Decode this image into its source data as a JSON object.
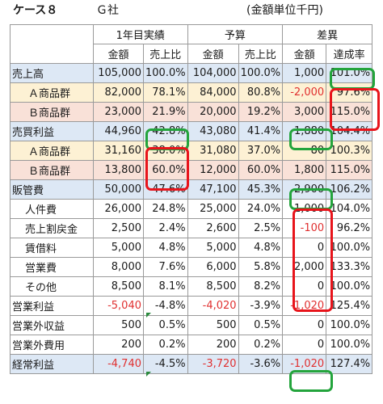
{
  "title": "ケース８",
  "company": "Ｇ社",
  "unit": "(金額単位千円)",
  "groups": {
    "year1": "1年目実績",
    "budget": "予算",
    "diff": "差異"
  },
  "cols": {
    "amount": "金額",
    "ratio": "売上比",
    "amount2": "金額",
    "ratio2": "売上比",
    "amount3": "金額",
    "achieve": "達成率"
  },
  "rows": [
    {
      "label": "売上高",
      "a1": "105,000",
      "r1": "100.0%",
      "a2": "104,000",
      "r2": "100.0%",
      "d": "1,000",
      "p": "101.0%"
    },
    {
      "label": "Ａ商品群",
      "a1": "82,000",
      "r1": "78.1%",
      "a2": "84,000",
      "r2": "80.8%",
      "d": "-2,000",
      "p": "97.6%"
    },
    {
      "label": "Ｂ商品群",
      "a1": "23,000",
      "r1": "21.9%",
      "a2": "20,000",
      "r2": "19.2%",
      "d": "3,000",
      "p": "115.0%"
    },
    {
      "label": "売買利益",
      "a1": "44,960",
      "r1": "42.8%",
      "a2": "43,080",
      "r2": "41.4%",
      "d": "1,880",
      "p": "104.4%"
    },
    {
      "label": "Ａ商品群",
      "a1": "31,160",
      "r1": "38.0%",
      "a2": "31,080",
      "r2": "37.0%",
      "d": "80",
      "p": "100.3%"
    },
    {
      "label": "Ｂ商品群",
      "a1": "13,800",
      "r1": "60.0%",
      "a2": "12,000",
      "r2": "60.0%",
      "d": "1,800",
      "p": "115.0%"
    },
    {
      "label": "販管費",
      "a1": "50,000",
      "r1": "47.6%",
      "a2": "47,100",
      "r2": "45.3%",
      "d": "2,900",
      "p": "106.2%"
    },
    {
      "label": "人件費",
      "a1": "26,000",
      "r1": "24.8%",
      "a2": "25,000",
      "r2": "24.0%",
      "d": "1,000",
      "p": "104.0%"
    },
    {
      "label": "売上割戻金",
      "a1": "2,500",
      "r1": "2.4%",
      "a2": "2,600",
      "r2": "2.5%",
      "d": "-100",
      "p": "96.2%"
    },
    {
      "label": "賃借料",
      "a1": "5,000",
      "r1": "4.8%",
      "a2": "5,000",
      "r2": "4.8%",
      "d": "0",
      "p": "100.0%"
    },
    {
      "label": "営業費",
      "a1": "8,000",
      "r1": "7.6%",
      "a2": "6,000",
      "r2": "5.8%",
      "d": "2,000",
      "p": "133.3%"
    },
    {
      "label": "その他",
      "a1": "8,500",
      "r1": "8.1%",
      "a2": "8,500",
      "r2": "8.2%",
      "d": "0",
      "p": "100.0%"
    },
    {
      "label": "営業利益",
      "a1": "-5,040",
      "r1": "-4.8%",
      "a2": "-4,020",
      "r2": "-3.9%",
      "d": "-1,020",
      "p": "125.4%"
    },
    {
      "label": "営業外収益",
      "a1": "500",
      "r1": "0.5%",
      "a2": "500",
      "r2": "0.5%",
      "d": "0",
      "p": "100.0%"
    },
    {
      "label": "営業外費用",
      "a1": "200",
      "r1": "0.2%",
      "a2": "200",
      "r2": "0.2%",
      "d": "0",
      "p": "100.0%"
    },
    {
      "label": "経常利益",
      "a1": "-4,740",
      "r1": "-4.5%",
      "a2": "-3,720",
      "r2": "-3.6%",
      "d": "-1,020",
      "p": "127.4%"
    }
  ]
}
